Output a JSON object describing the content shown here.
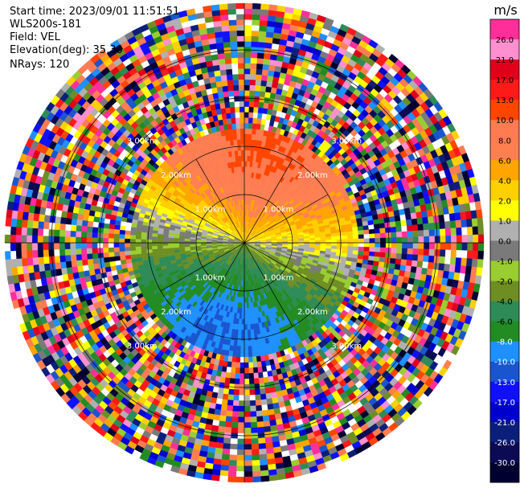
{
  "header": {
    "start_time": "Start time: 2023/09/01 11:51:51",
    "instrument": "WLS200s-181",
    "field": "Field: VEL",
    "elevation": "Elevation(deg): 35.30",
    "nrays": "NRays: 120"
  },
  "colorbar": {
    "unit": "m/s",
    "tick_labels": [
      "26.0",
      "21.0",
      "17.0",
      "13.0",
      "10.0",
      "8.0",
      "6.0",
      "4.0",
      "2.0",
      "1.0",
      "0.0",
      "-1.0",
      "-2.0",
      "-4.0",
      "-6.0",
      "-8.0",
      "-10.0",
      "-13.0",
      "-17.0",
      "-21.0",
      "-26.0",
      "-30.0"
    ],
    "colors": [
      "#ff2f9a",
      "#ff8fcf",
      "#e0001a",
      "#ff1a1a",
      "#ff4500",
      "#ff7b52",
      "#ff7f50",
      "#ffa500",
      "#ffd000",
      "#ffff00",
      "#b0b0b0",
      "#7a7a7a",
      "#9acd32",
      "#6e8e23",
      "#2e8b57",
      "#228b22",
      "#1e90ff",
      "#1a55d0",
      "#1010ff",
      "#0000cc",
      "#0b1f7a",
      "#0a0a55",
      "#000030"
    ]
  },
  "chart_data": {
    "type": "heatmap",
    "title": "",
    "field": "VEL",
    "elevation_deg": 35.3,
    "n_rays": 120,
    "range_labels": [
      "1.00km",
      "2.00km",
      "3.00km"
    ],
    "range_rings_km": [
      1,
      2,
      3,
      4
    ],
    "azimuth_lines_deg": [
      0,
      30,
      60,
      90,
      120,
      150,
      180,
      210,
      240,
      270,
      300,
      330
    ],
    "vmin": -30.0,
    "vmax": 26.0,
    "description_of_field": "Inner disk (≲2.4 km) shows coherent wind: positive velocities (orange/red/yellow) toward north, negative (green/blue) toward south; beyond ~2.4 km the field is noise."
  }
}
